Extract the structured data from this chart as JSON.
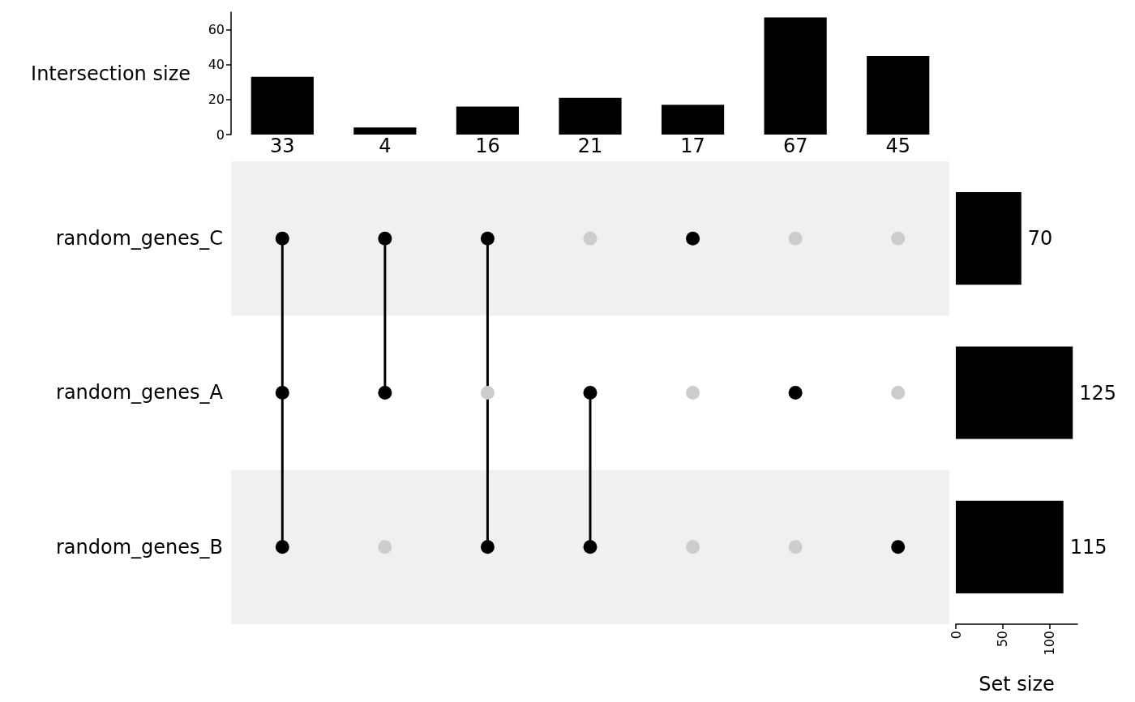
{
  "chart_data": [
    {
      "type": "bar",
      "categories": [
        null,
        null,
        null,
        null,
        null,
        null,
        null
      ],
      "values": [
        33,
        4,
        16,
        21,
        17,
        67,
        45
      ],
      "color": "#000000",
      "ylabel": "Intersection size",
      "ylim": [
        0,
        70
      ],
      "yticks": [
        0,
        20,
        40,
        60
      ],
      "data_labels": true
    },
    {
      "type": "bar",
      "orientation": "horizontal",
      "categories": [
        "random_genes_C",
        "random_genes_A",
        "random_genes_B"
      ],
      "values": [
        70,
        125,
        115
      ],
      "color": "#000000",
      "xlabel": "Set size",
      "xlim": [
        0,
        130
      ],
      "xticks": [
        0,
        50,
        100
      ],
      "data_labels": true,
      "tick_labels": "x"
    }
  ]
}
